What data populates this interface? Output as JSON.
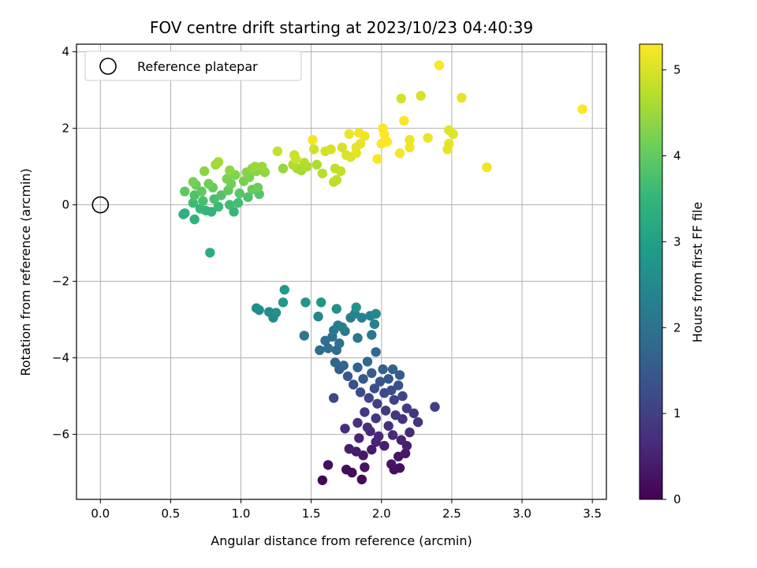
{
  "chart_data": {
    "type": "scatter",
    "title": "FOV centre drift starting at 2023/10/23 04:40:39",
    "xlabel": "Angular distance from reference (arcmin)",
    "ylabel": "Rotation from reference (arcmin)",
    "xlim": [
      -0.17,
      3.6
    ],
    "ylim": [
      -7.7,
      4.2
    ],
    "xticks": [
      "0.0",
      "0.5",
      "1.0",
      "1.5",
      "2.0",
      "2.5",
      "3.0",
      "3.5"
    ],
    "xtick_values": [
      0,
      0.5,
      1.0,
      1.5,
      2.0,
      2.5,
      3.0,
      3.5
    ],
    "yticks": [
      "−6",
      "−4",
      "−2",
      "0",
      "2",
      "4"
    ],
    "ytick_values": [
      -6,
      -4,
      -2,
      0,
      2,
      4
    ],
    "grid": true,
    "legend": {
      "position": "upper-left",
      "entries": [
        "Reference platepar"
      ]
    },
    "reference_point": {
      "x": 0.0,
      "y": 0.0
    },
    "colorbar": {
      "label": "Hours from first FF file",
      "range": [
        0,
        5.3
      ],
      "ticks": [
        "0",
        "1",
        "2",
        "3",
        "4",
        "5"
      ],
      "tick_values": [
        0,
        1,
        2,
        3,
        4,
        5
      ],
      "colormap": "viridis"
    },
    "colormap_stops": [
      "#440154",
      "#482878",
      "#3e4989",
      "#31688e",
      "#26828e",
      "#1f9e89",
      "#35b779",
      "#6ece58",
      "#b5de2b",
      "#fde725"
    ],
    "points": [
      [
        1.58,
        -7.2,
        0.05
      ],
      [
        1.86,
        -7.18,
        0.1
      ],
      [
        1.79,
        -7.0,
        0.12
      ],
      [
        1.75,
        -6.92,
        0.15
      ],
      [
        1.62,
        -6.8,
        0.18
      ],
      [
        2.09,
        -6.92,
        0.2
      ],
      [
        2.13,
        -6.88,
        0.22
      ],
      [
        2.07,
        -6.78,
        0.25
      ],
      [
        1.88,
        -6.86,
        0.28
      ],
      [
        2.12,
        -6.58,
        0.3
      ],
      [
        2.17,
        -6.5,
        0.32
      ],
      [
        1.87,
        -6.55,
        0.35
      ],
      [
        1.82,
        -6.45,
        0.38
      ],
      [
        1.93,
        -6.4,
        0.4
      ],
      [
        1.77,
        -6.38,
        0.42
      ],
      [
        2.02,
        -6.3,
        0.45
      ],
      [
        2.18,
        -6.3,
        0.48
      ],
      [
        1.96,
        -6.2,
        0.5
      ],
      [
        2.14,
        -6.15,
        0.52
      ],
      [
        1.84,
        -6.1,
        0.55
      ],
      [
        1.98,
        -6.05,
        0.58
      ],
      [
        2.08,
        -6.02,
        0.6
      ],
      [
        1.92,
        -5.92,
        0.62
      ],
      [
        2.2,
        -5.95,
        0.65
      ],
      [
        1.74,
        -5.85,
        0.68
      ],
      [
        1.9,
        -5.82,
        0.7
      ],
      [
        2.05,
        -5.78,
        0.72
      ],
      [
        1.83,
        -5.7,
        0.75
      ],
      [
        2.26,
        -5.68,
        0.78
      ],
      [
        2.15,
        -5.6,
        0.8
      ],
      [
        1.96,
        -5.58,
        0.82
      ],
      [
        2.1,
        -5.5,
        0.85
      ],
      [
        2.23,
        -5.45,
        0.88
      ],
      [
        1.88,
        -5.42,
        0.9
      ],
      [
        2.03,
        -5.38,
        0.92
      ],
      [
        2.18,
        -5.32,
        0.95
      ],
      [
        2.38,
        -5.28,
        0.98
      ],
      [
        1.97,
        -5.2,
        1.0
      ],
      [
        2.09,
        -5.1,
        1.05
      ],
      [
        1.91,
        -5.05,
        1.08
      ],
      [
        2.15,
        -5.0,
        1.12
      ],
      [
        1.66,
        -5.05,
        1.15
      ],
      [
        2.02,
        -4.92,
        1.18
      ],
      [
        1.85,
        -4.9,
        1.22
      ],
      [
        2.07,
        -4.85,
        1.25
      ],
      [
        1.95,
        -4.8,
        1.28
      ],
      [
        2.12,
        -4.72,
        1.32
      ],
      [
        1.8,
        -4.7,
        1.35
      ],
      [
        1.99,
        -4.62,
        1.38
      ],
      [
        2.05,
        -4.55,
        1.42
      ],
      [
        1.87,
        -4.55,
        1.45
      ],
      [
        1.76,
        -4.48,
        1.48
      ],
      [
        2.13,
        -4.45,
        1.52
      ],
      [
        1.93,
        -4.4,
        1.55
      ],
      [
        1.7,
        -4.3,
        1.58
      ],
      [
        2.01,
        -4.3,
        1.62
      ],
      [
        2.08,
        -4.3,
        1.65
      ],
      [
        1.83,
        -4.25,
        1.68
      ],
      [
        1.73,
        -4.2,
        1.72
      ],
      [
        1.67,
        -4.12,
        1.75
      ],
      [
        1.9,
        -4.1,
        1.78
      ],
      [
        1.96,
        -3.85,
        1.82
      ],
      [
        1.68,
        -3.8,
        1.85
      ],
      [
        1.56,
        -3.8,
        1.88
      ],
      [
        1.62,
        -3.75,
        1.92
      ],
      [
        1.7,
        -3.62,
        1.95
      ],
      [
        1.6,
        -3.55,
        1.98
      ],
      [
        1.65,
        -3.45,
        2.02
      ],
      [
        1.83,
        -3.48,
        2.05
      ],
      [
        1.45,
        -3.42,
        2.08
      ],
      [
        1.93,
        -3.4,
        2.12
      ],
      [
        1.74,
        -3.3,
        2.15
      ],
      [
        1.66,
        -3.28,
        2.18
      ],
      [
        1.72,
        -3.2,
        2.22
      ],
      [
        1.69,
        -3.15,
        2.25
      ],
      [
        1.78,
        -2.95,
        2.28
      ],
      [
        1.86,
        -2.95,
        2.32
      ],
      [
        1.95,
        -3.12,
        2.35
      ],
      [
        1.92,
        -2.9,
        2.38
      ],
      [
        1.81,
        -2.85,
        2.42
      ],
      [
        1.55,
        -2.92,
        2.45
      ],
      [
        1.96,
        -2.85,
        2.48
      ],
      [
        1.23,
        -2.95,
        2.52
      ],
      [
        1.2,
        -2.8,
        2.55
      ],
      [
        1.13,
        -2.75,
        2.58
      ],
      [
        1.11,
        -2.7,
        2.62
      ],
      [
        1.25,
        -2.82,
        2.65
      ],
      [
        1.68,
        -2.72,
        2.68
      ],
      [
        1.82,
        -2.68,
        2.72
      ],
      [
        1.46,
        -2.55,
        2.75
      ],
      [
        1.57,
        -2.55,
        2.78
      ],
      [
        1.3,
        -2.55,
        2.82
      ],
      [
        1.31,
        -2.22,
        2.88
      ],
      [
        0.78,
        -1.25,
        3.3
      ],
      [
        0.6,
        -0.22,
        3.35
      ],
      [
        0.59,
        -0.25,
        3.38
      ],
      [
        0.67,
        -0.38,
        3.42
      ],
      [
        0.79,
        -0.18,
        3.45
      ],
      [
        0.75,
        -0.15,
        3.48
      ],
      [
        0.95,
        -0.18,
        3.52
      ],
      [
        0.71,
        -0.1,
        3.55
      ],
      [
        0.84,
        -0.05,
        3.58
      ],
      [
        0.66,
        0.05,
        3.62
      ],
      [
        0.92,
        0.0,
        3.65
      ],
      [
        0.98,
        0.05,
        3.68
      ],
      [
        0.73,
        0.1,
        3.72
      ],
      [
        0.81,
        0.15,
        3.75
      ],
      [
        1.05,
        0.2,
        3.78
      ],
      [
        0.67,
        0.25,
        3.82
      ],
      [
        0.86,
        0.25,
        3.85
      ],
      [
        1.13,
        0.28,
        3.88
      ],
      [
        0.99,
        0.3,
        3.92
      ],
      [
        0.6,
        0.35,
        3.95
      ],
      [
        0.72,
        0.35,
        3.98
      ],
      [
        0.91,
        0.38,
        4.0
      ],
      [
        1.08,
        0.4,
        4.02
      ],
      [
        0.8,
        0.45,
        4.05
      ],
      [
        1.12,
        0.45,
        4.08
      ],
      [
        0.68,
        0.52,
        4.1
      ],
      [
        0.77,
        0.55,
        4.12
      ],
      [
        0.93,
        0.55,
        4.15
      ],
      [
        0.66,
        0.6,
        4.18
      ],
      [
        1.02,
        0.62,
        4.2
      ],
      [
        0.9,
        0.68,
        4.22
      ],
      [
        1.06,
        0.72,
        4.25
      ],
      [
        0.96,
        0.78,
        4.28
      ],
      [
        1.04,
        0.85,
        4.3
      ],
      [
        1.11,
        0.88,
        4.32
      ],
      [
        0.74,
        0.88,
        4.35
      ],
      [
        0.92,
        0.9,
        4.38
      ],
      [
        1.08,
        0.95,
        4.4
      ],
      [
        1.17,
        0.85,
        4.42
      ],
      [
        1.3,
        0.95,
        4.45
      ],
      [
        1.1,
        1.0,
        4.48
      ],
      [
        1.15,
        1.0,
        4.5
      ],
      [
        0.82,
        1.05,
        4.52
      ],
      [
        0.84,
        1.12,
        4.55
      ],
      [
        1.43,
        0.9,
        4.58
      ],
      [
        1.4,
        0.95,
        4.6
      ],
      [
        1.47,
        1.0,
        4.62
      ],
      [
        1.54,
        1.05,
        4.65
      ],
      [
        1.37,
        1.05,
        4.68
      ],
      [
        1.45,
        1.1,
        4.7
      ],
      [
        1.58,
        0.82,
        4.72
      ],
      [
        1.66,
        0.6,
        4.75
      ],
      [
        1.68,
        0.65,
        4.78
      ],
      [
        1.67,
        0.95,
        4.8
      ],
      [
        1.71,
        0.88,
        4.82
      ],
      [
        1.26,
        1.4,
        4.85
      ],
      [
        1.38,
        1.3,
        4.88
      ],
      [
        1.39,
        1.2,
        4.9
      ],
      [
        1.52,
        1.45,
        4.92
      ],
      [
        1.6,
        1.4,
        4.95
      ],
      [
        1.64,
        1.45,
        4.98
      ],
      [
        1.72,
        1.5,
        5.0
      ],
      [
        1.75,
        1.3,
        5.02
      ],
      [
        1.78,
        1.25,
        5.05
      ],
      [
        1.82,
        1.35,
        5.08
      ],
      [
        1.82,
        1.5,
        5.1
      ],
      [
        1.85,
        1.6,
        5.12
      ],
      [
        1.77,
        1.85,
        5.15
      ],
      [
        1.88,
        1.8,
        5.18
      ],
      [
        1.84,
        1.88,
        5.2
      ],
      [
        1.51,
        1.7,
        5.22
      ],
      [
        1.97,
        1.2,
        5.25
      ],
      [
        2.0,
        1.6,
        5.28
      ],
      [
        2.02,
        1.85,
        5.3
      ],
      [
        2.04,
        1.65,
        5.3
      ],
      [
        2.01,
        2.0,
        5.28
      ],
      [
        2.16,
        2.2,
        5.25
      ],
      [
        2.13,
        1.35,
        5.22
      ],
      [
        2.2,
        1.5,
        5.2
      ],
      [
        2.2,
        1.7,
        5.18
      ],
      [
        2.33,
        1.75,
        5.15
      ],
      [
        2.47,
        1.45,
        5.12
      ],
      [
        2.48,
        1.6,
        5.1
      ],
      [
        2.48,
        1.95,
        5.08
      ],
      [
        2.51,
        1.85,
        5.05
      ],
      [
        2.14,
        2.78,
        4.95
      ],
      [
        2.28,
        2.85,
        4.98
      ],
      [
        2.57,
        2.8,
        5.12
      ],
      [
        2.75,
        0.98,
        5.18
      ],
      [
        2.41,
        3.65,
        5.28
      ],
      [
        3.43,
        2.5,
        5.3
      ]
    ]
  }
}
